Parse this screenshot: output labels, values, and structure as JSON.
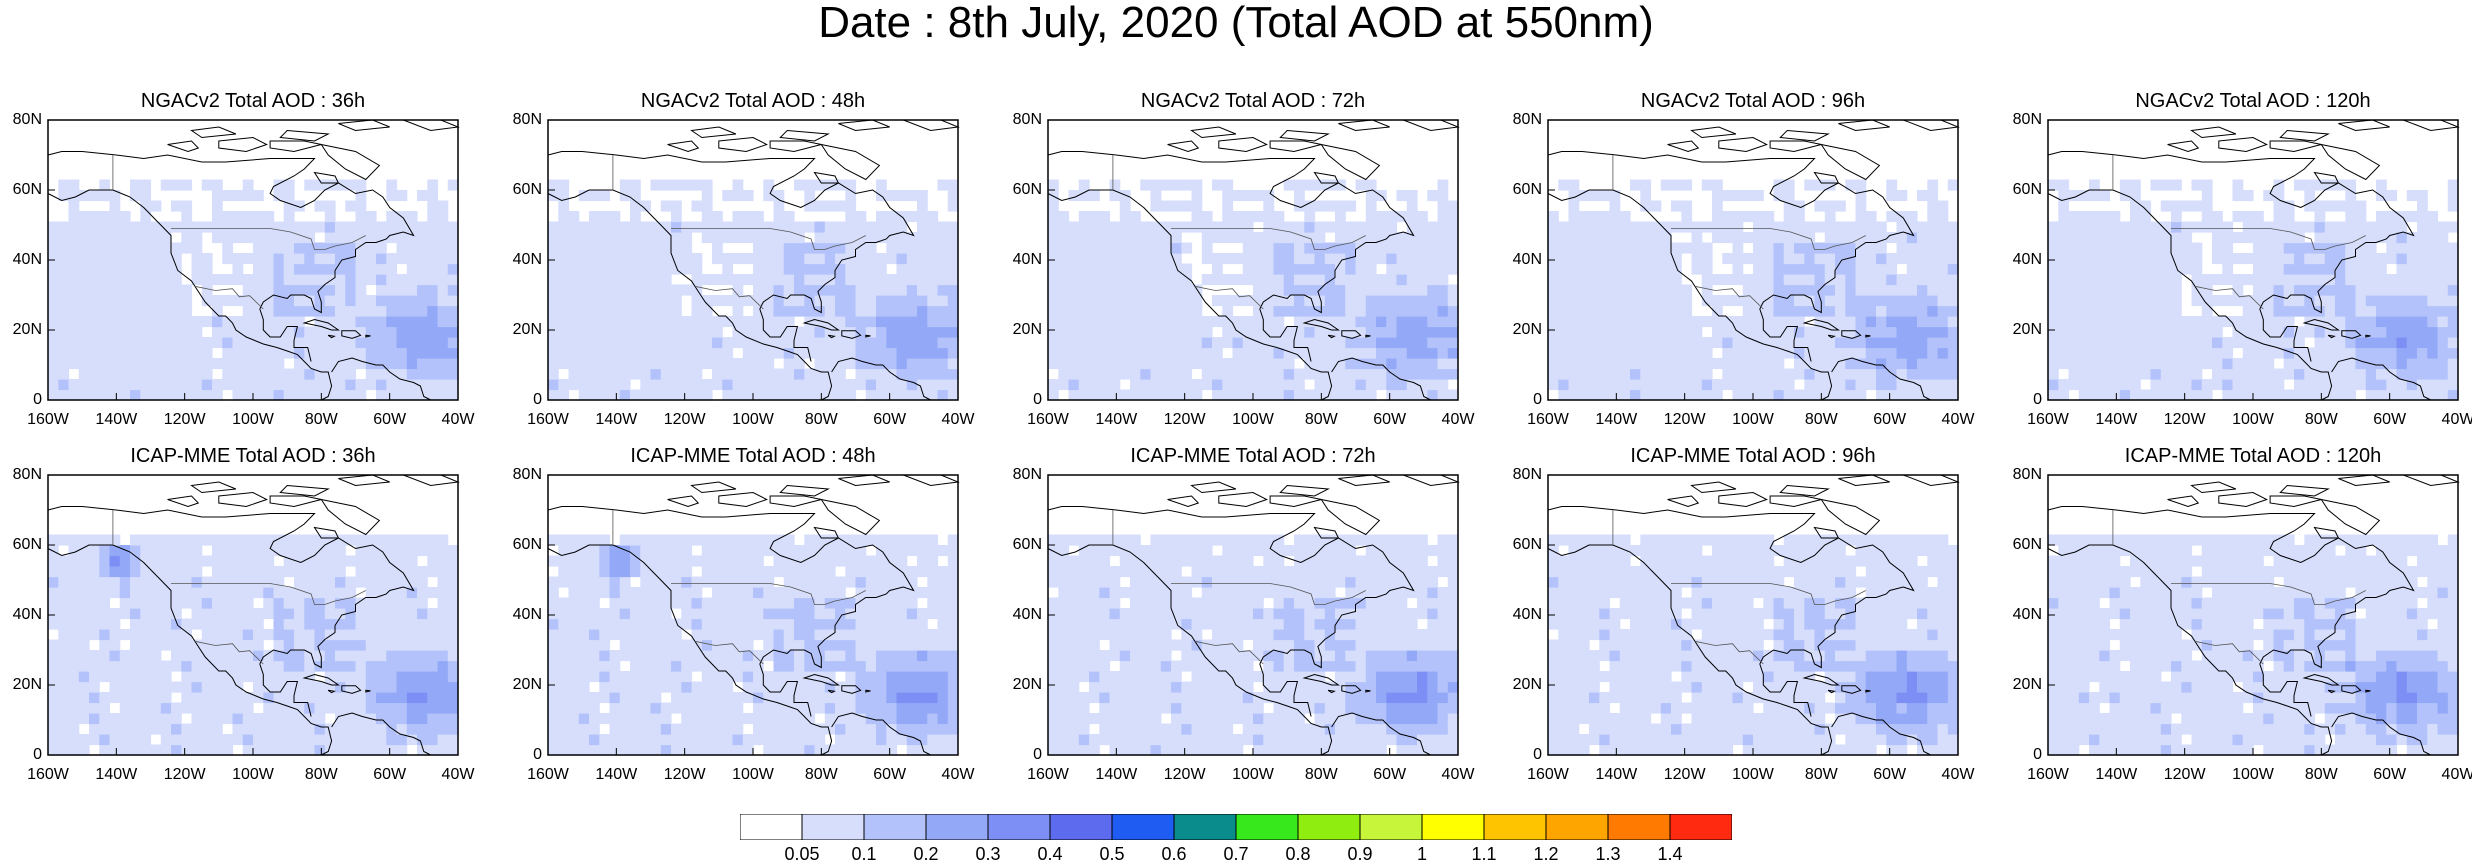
{
  "title": "Date : 8th July, 2020 (Total AOD at 550nm)",
  "x_ticks": [
    "160W",
    "140W",
    "120W",
    "100W",
    "80W",
    "60W",
    "40W"
  ],
  "y_ticks": [
    "80N",
    "60N",
    "40N",
    "20N",
    "0"
  ],
  "panels": [
    {
      "title": "NGACv2 Total AOD : 36h",
      "model": "NGACv2",
      "lead": "36h"
    },
    {
      "title": "NGACv2 Total AOD : 48h",
      "model": "NGACv2",
      "lead": "48h"
    },
    {
      "title": "NGACv2 Total AOD : 72h",
      "model": "NGACv2",
      "lead": "72h"
    },
    {
      "title": "NGACv2 Total AOD : 96h",
      "model": "NGACv2",
      "lead": "96h"
    },
    {
      "title": "NGACv2 Total AOD : 120h",
      "model": "NGACv2",
      "lead": "120h"
    },
    {
      "title": "ICAP-MME Total AOD : 36h",
      "model": "ICAP-MME",
      "lead": "36h"
    },
    {
      "title": "ICAP-MME Total AOD : 48h",
      "model": "ICAP-MME",
      "lead": "48h"
    },
    {
      "title": "ICAP-MME Total AOD : 72h",
      "model": "ICAP-MME",
      "lead": "72h"
    },
    {
      "title": "ICAP-MME Total AOD : 96h",
      "model": "ICAP-MME",
      "lead": "96h"
    },
    {
      "title": "ICAP-MME Total AOD : 120h",
      "model": "ICAP-MME",
      "lead": "120h"
    }
  ],
  "colorbar": {
    "labels": [
      "0.05",
      "0.1",
      "0.2",
      "0.3",
      "0.4",
      "0.5",
      "0.6",
      "0.7",
      "0.8",
      "0.9",
      "1",
      "1.1",
      "1.2",
      "1.3",
      "1.4"
    ],
    "colors": [
      "#ffffff",
      "#d6defc",
      "#b3c2fa",
      "#93a9f8",
      "#7d8ff4",
      "#5d6cee",
      "#1e5cf2",
      "#0b8c8c",
      "#36e81c",
      "#8fee10",
      "#c6f53a",
      "#ffff00",
      "#ffc400",
      "#ffa500",
      "#ff7a00",
      "#ff2a10"
    ]
  }
}
